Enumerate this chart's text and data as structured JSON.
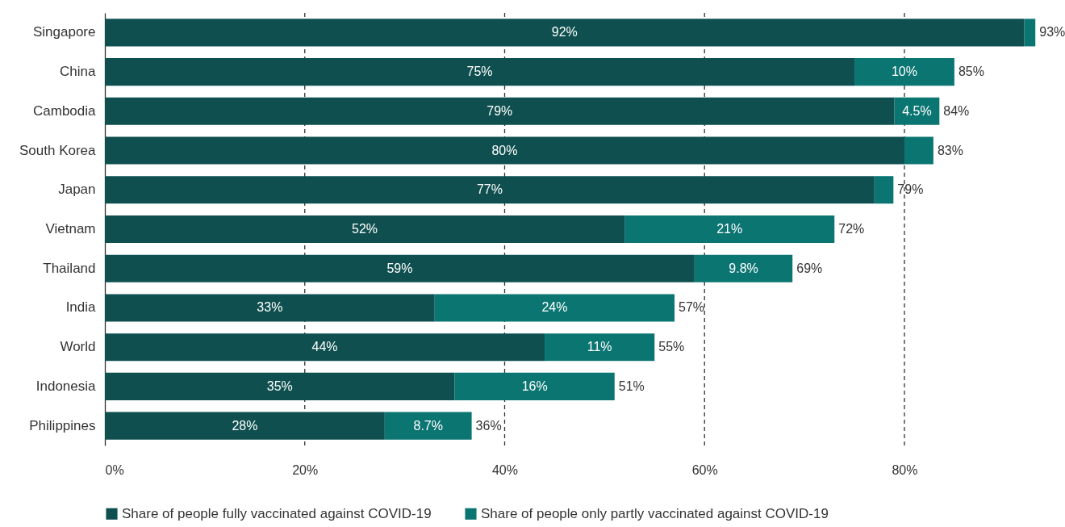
{
  "chart_data": {
    "type": "bar",
    "orientation": "horizontal",
    "stacked": true,
    "categories": [
      "Singapore",
      "China",
      "Cambodia",
      "South Korea",
      "Japan",
      "Vietnam",
      "Thailand",
      "India",
      "World",
      "Indonesia",
      "Philippines"
    ],
    "series": [
      {
        "name": "Share of people fully vaccinated against COVID-19",
        "color": "#0f4f4f",
        "values": [
          92,
          75,
          79,
          80,
          77,
          52,
          59,
          33,
          44,
          35,
          28
        ],
        "value_labels": [
          "92%",
          "75%",
          "79%",
          "80%",
          "77%",
          "52%",
          "59%",
          "33%",
          "44%",
          "35%",
          "28%"
        ]
      },
      {
        "name": "Share of people only partly vaccinated against COVID-19",
        "color": "#0b7572",
        "values": [
          1.1,
          10,
          4.5,
          2.9,
          1.9,
          21,
          9.8,
          24,
          11,
          16,
          8.7
        ],
        "value_labels": [
          null,
          "10%",
          "4.5%",
          null,
          null,
          "21%",
          "9.8%",
          "24%",
          "11%",
          "16%",
          "8.7%"
        ]
      }
    ],
    "totals": [
      "93%",
      "85%",
      "84%",
      "83%",
      "79%",
      "72%",
      "69%",
      "57%",
      "55%",
      "51%",
      "36%"
    ],
    "xlim": [
      0,
      93
    ],
    "xticks": [
      {
        "value": 0,
        "label": "0%"
      },
      {
        "value": 20,
        "label": "20%"
      },
      {
        "value": 40,
        "label": "40%"
      },
      {
        "value": 60,
        "label": "60%"
      },
      {
        "value": 80,
        "label": "80%"
      }
    ],
    "grid": "x",
    "legend": "bottom"
  }
}
